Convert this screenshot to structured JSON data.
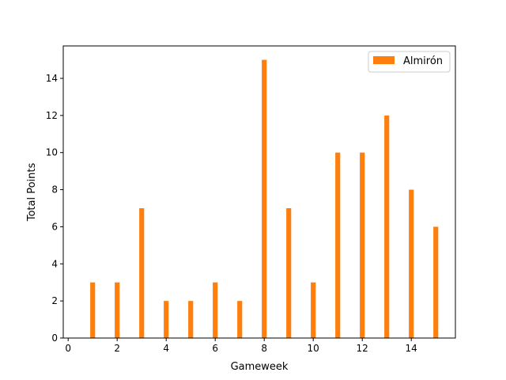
{
  "chart_data": {
    "type": "bar",
    "title": "",
    "xlabel": "Gameweek",
    "ylabel": "Total Points",
    "x": [
      1,
      2,
      3,
      4,
      5,
      6,
      7,
      8,
      9,
      10,
      11,
      12,
      13,
      14,
      15
    ],
    "series": [
      {
        "name": "Almirón",
        "color": "#ff7f0e",
        "values": [
          3,
          3,
          7,
          2,
          2,
          3,
          2,
          15,
          7,
          3,
          10,
          10,
          12,
          8,
          6
        ]
      }
    ],
    "xlim": [
      -0.2,
      15.8
    ],
    "ylim": [
      0,
      15.75
    ],
    "xticks": [
      0,
      2,
      4,
      6,
      8,
      10,
      12,
      14
    ],
    "yticks": [
      0,
      2,
      4,
      6,
      8,
      10,
      12,
      14
    ],
    "grid": false,
    "legend_position": "top-right"
  }
}
